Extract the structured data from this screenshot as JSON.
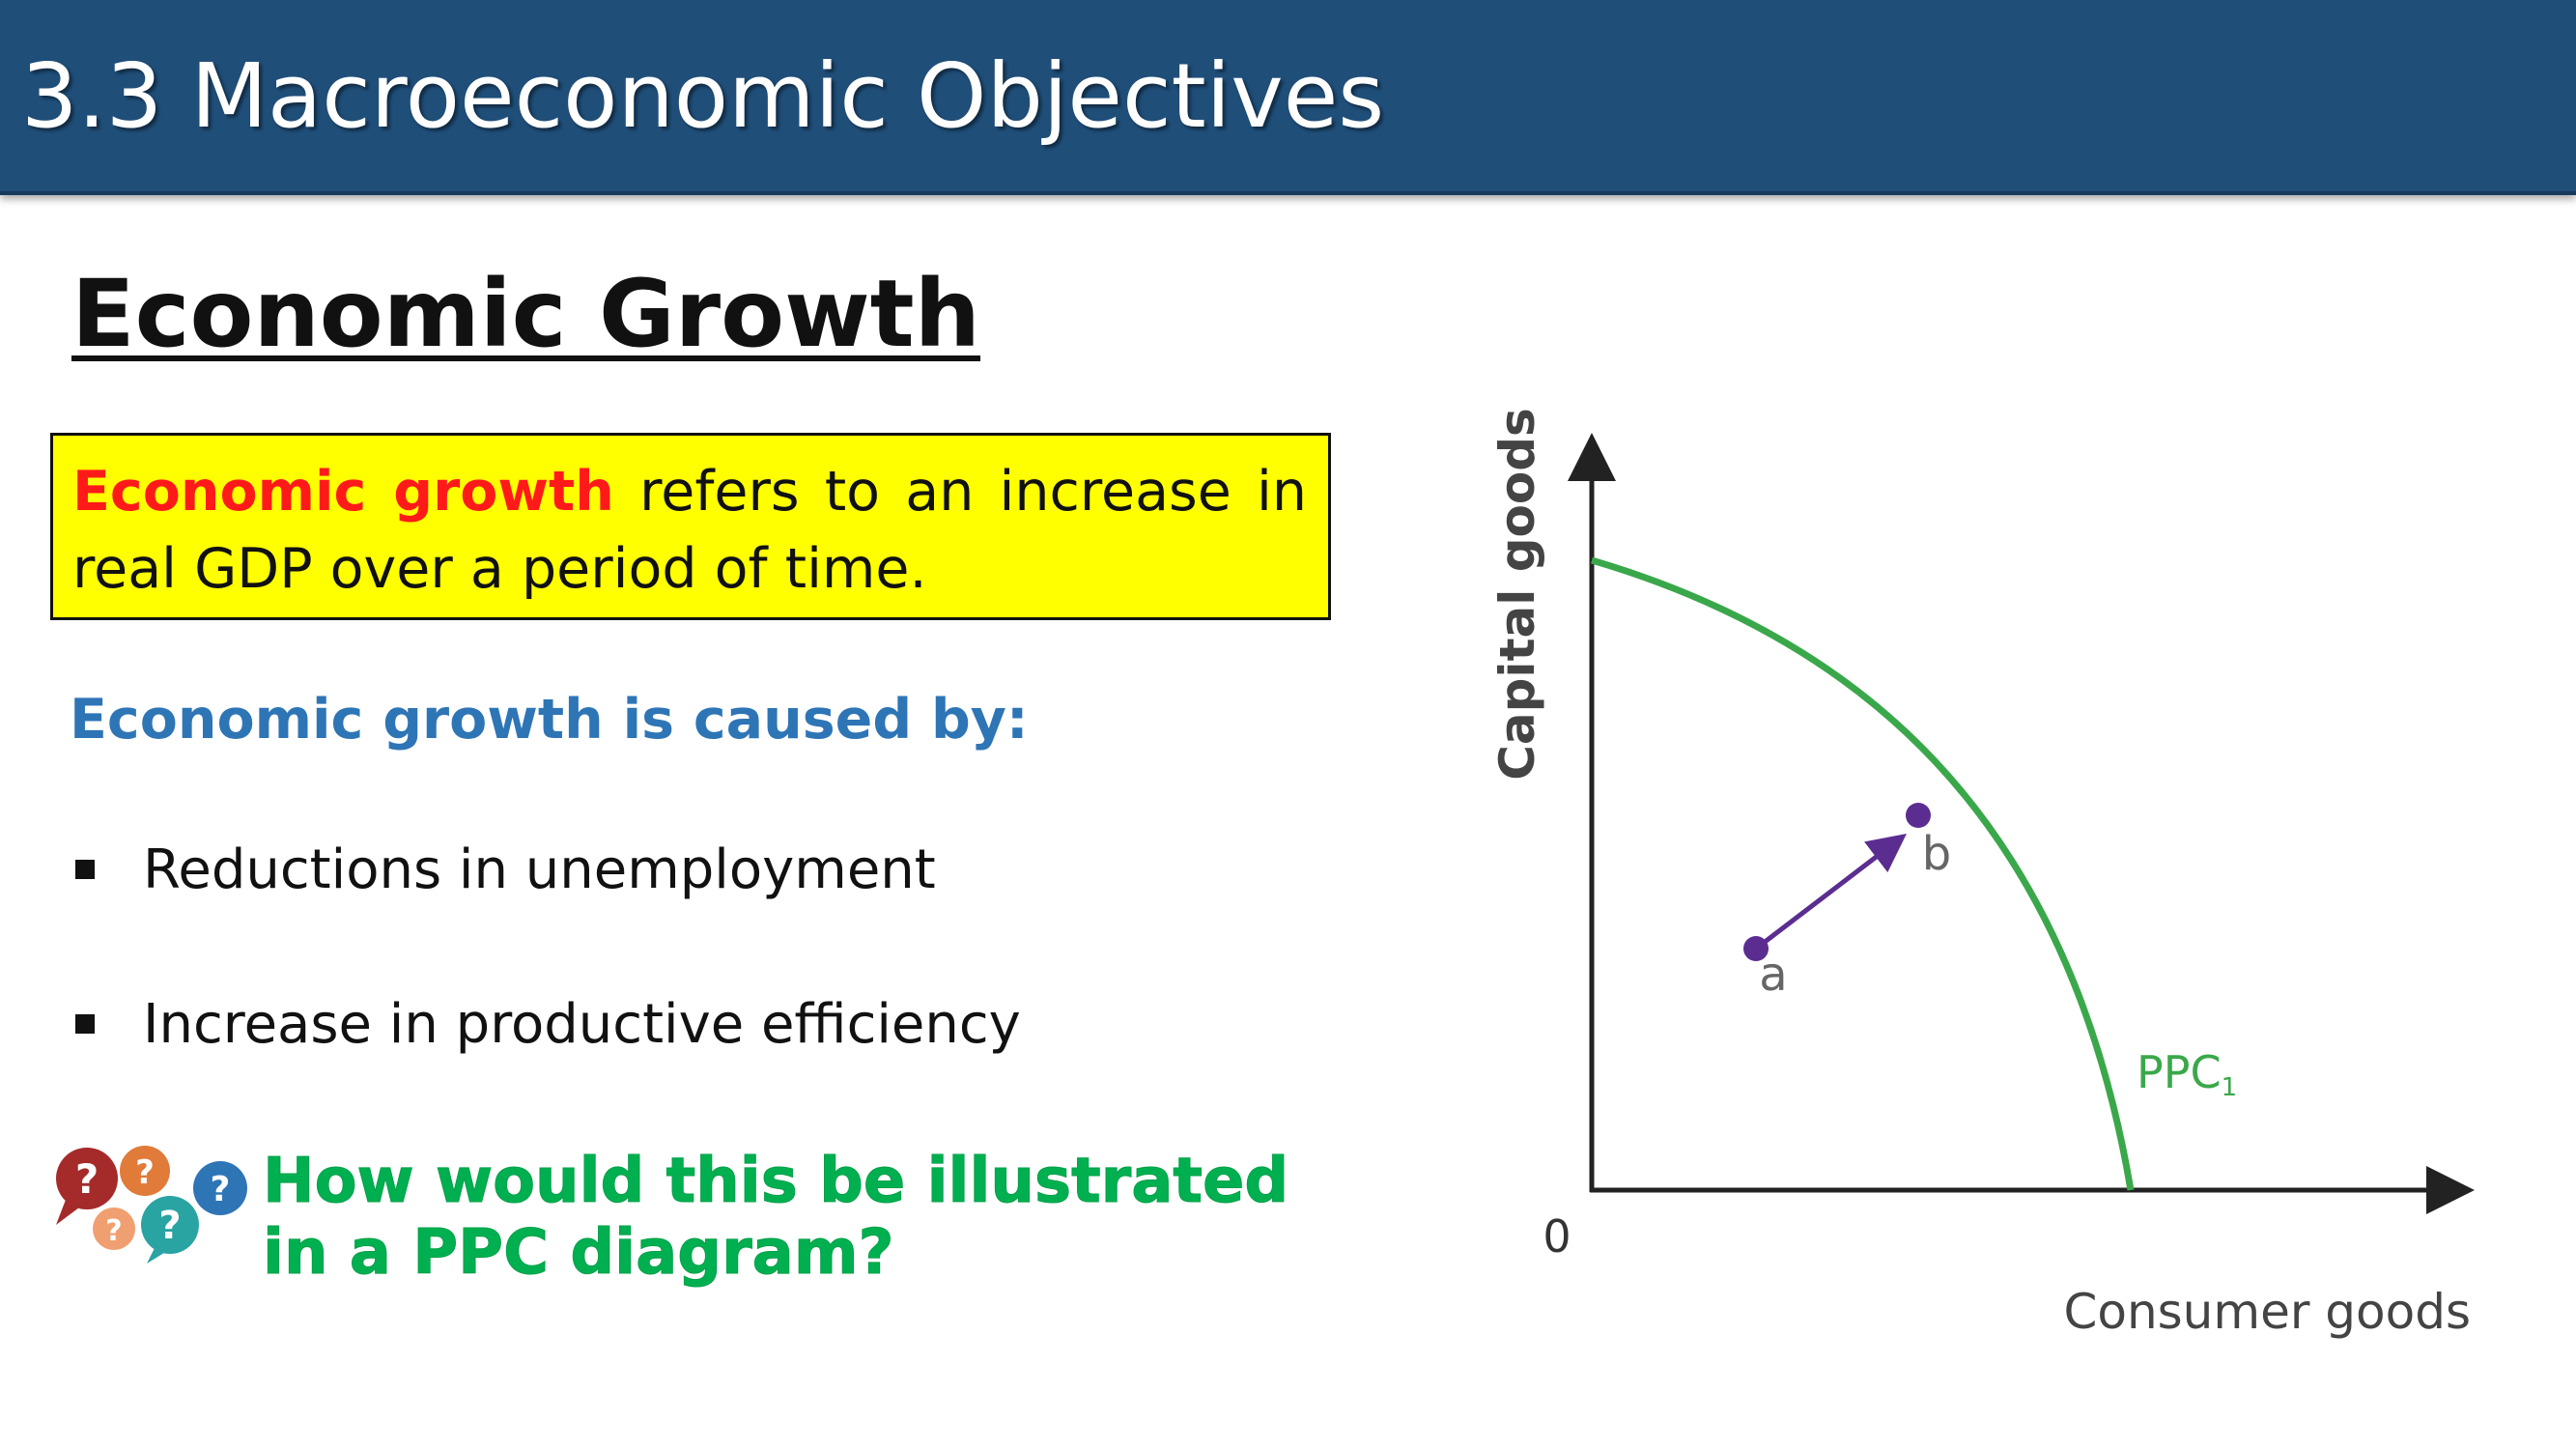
{
  "header": {
    "title": "3.3 Macroeconomic Objectives"
  },
  "section": {
    "heading": "Economic Growth"
  },
  "definition": {
    "keyword": "Economic growth",
    "rest": " refers to an increase in real GDP over a period of time."
  },
  "caused_by": {
    "heading": "Economic growth is caused by:",
    "items": [
      {
        "text": "Reductions in unemployment"
      },
      {
        "text": "Increase in productive efficiency"
      }
    ]
  },
  "question": {
    "line1": "How would this be illustrated",
    "line2": "in a PPC diagram?"
  },
  "diagram": {
    "y_axis_label": "Capital goods",
    "x_axis_label": "Consumer goods",
    "origin_label": "0",
    "curve_label": "PPC",
    "curve_subscript": "1",
    "point_a_label": "a",
    "point_b_label": "b",
    "colors": {
      "curve": "#3aa84a",
      "points": "#5b2d91",
      "axis": "#222222"
    }
  },
  "colors": {
    "header_bg": "#1f4e79",
    "definition_bg": "#ffff00",
    "keyword": "#ff1a1a",
    "caused_by": "#2e75b6",
    "question": "#00b050"
  }
}
